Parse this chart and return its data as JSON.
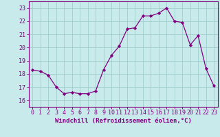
{
  "x": [
    0,
    1,
    2,
    3,
    4,
    5,
    6,
    7,
    8,
    9,
    10,
    11,
    12,
    13,
    14,
    15,
    16,
    17,
    18,
    19,
    20,
    21,
    22,
    23
  ],
  "y": [
    18.3,
    18.2,
    17.9,
    17.0,
    16.5,
    16.6,
    16.5,
    16.5,
    16.7,
    18.3,
    19.4,
    20.1,
    21.4,
    21.5,
    22.4,
    22.4,
    22.6,
    23.0,
    22.0,
    21.9,
    20.2,
    20.9,
    18.4,
    17.1
  ],
  "line_color": "#800080",
  "marker": "D",
  "marker_size": 2.2,
  "bg_color": "#c8eaea",
  "grid_color": "#a0cece",
  "axis_color": "#800080",
  "spine_color": "#800080",
  "xlabel": "Windchill (Refroidissement éolien,°C)",
  "xlabel_fontsize": 6.5,
  "ylabel_ticks": [
    16,
    17,
    18,
    19,
    20,
    21,
    22,
    23
  ],
  "xlim": [
    -0.5,
    23.5
  ],
  "ylim": [
    15.5,
    23.5
  ],
  "tick_fontsize": 6.0,
  "linewidth": 0.9
}
